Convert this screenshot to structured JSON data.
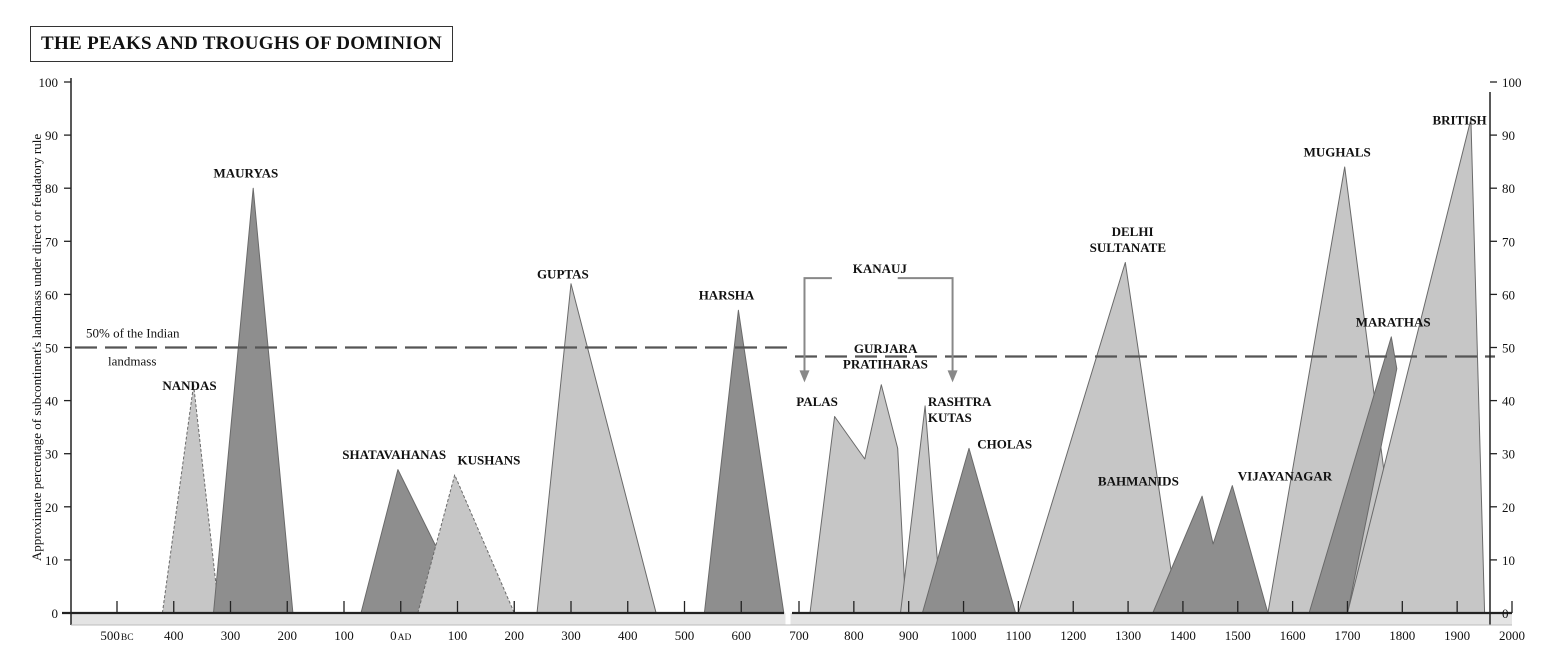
{
  "chart_data": {
    "type": "area",
    "title": "THE PEAKS AND TROUGHS OF DOMINION",
    "ylabel": "Approximate percentage of subcontinent's landmass under direct or feudatory rule",
    "ylim": [
      0,
      100
    ],
    "y_ticks": [
      "0",
      "10",
      "20",
      "30",
      "40",
      "50",
      "60",
      "70",
      "80",
      "90",
      "100"
    ],
    "reference_line": {
      "value": 50,
      "label_line1": "50% of the Indian",
      "label_line2": "landmass"
    },
    "panels": [
      {
        "name": "left",
        "x_ticks": [
          {
            "year": -500,
            "label": "500",
            "suffix": "BC"
          },
          {
            "year": -400,
            "label": "400"
          },
          {
            "year": -300,
            "label": "300"
          },
          {
            "year": -200,
            "label": "200"
          },
          {
            "year": -100,
            "label": "100"
          },
          {
            "year": 0,
            "label": "0",
            "suffix": "AD"
          },
          {
            "year": 100,
            "label": "100"
          },
          {
            "year": 200,
            "label": "200"
          },
          {
            "year": 300,
            "label": "300"
          },
          {
            "year": 400,
            "label": "400"
          },
          {
            "year": 500,
            "label": "500"
          },
          {
            "year": 600,
            "label": "600"
          }
        ]
      },
      {
        "name": "right",
        "x_ticks": [
          {
            "year": 700,
            "label": "700"
          },
          {
            "year": 800,
            "label": "800"
          },
          {
            "year": 900,
            "label": "900"
          },
          {
            "year": 1000,
            "label": "1000"
          },
          {
            "year": 1100,
            "label": "1100"
          },
          {
            "year": 1200,
            "label": "1200"
          },
          {
            "year": 1300,
            "label": "1300"
          },
          {
            "year": 1400,
            "label": "1400"
          },
          {
            "year": 1500,
            "label": "1500"
          },
          {
            "year": 1600,
            "label": "1600"
          },
          {
            "year": 1700,
            "label": "1700"
          },
          {
            "year": 1800,
            "label": "1800"
          },
          {
            "year": 1900,
            "label": "1900"
          },
          {
            "year": 2000,
            "label": "2000"
          }
        ]
      }
    ],
    "series": [
      {
        "name": "NANDAS",
        "panel": 0,
        "tone": "light",
        "dashed": true,
        "points": [
          [
            -420,
            0
          ],
          [
            -365,
            43
          ],
          [
            -320,
            0
          ]
        ]
      },
      {
        "name": "MAURYAS",
        "panel": 0,
        "tone": "dark",
        "points": [
          [
            -330,
            0
          ],
          [
            -260,
            80
          ],
          [
            -190,
            0
          ]
        ]
      },
      {
        "name": "SHATAVAHANAS",
        "panel": 0,
        "tone": "dark",
        "points": [
          [
            -70,
            0
          ],
          [
            -5,
            27
          ],
          [
            120,
            0
          ]
        ]
      },
      {
        "name": "KUSHANS",
        "panel": 0,
        "tone": "light",
        "dashed": true,
        "points": [
          [
            30,
            0
          ],
          [
            95,
            26
          ],
          [
            200,
            0
          ]
        ]
      },
      {
        "name": "GUPTAS",
        "panel": 0,
        "tone": "light",
        "points": [
          [
            240,
            0
          ],
          [
            300,
            62
          ],
          [
            450,
            0
          ]
        ]
      },
      {
        "name": "HARSHA",
        "panel": 0,
        "tone": "dark",
        "points": [
          [
            535,
            0
          ],
          [
            595,
            57
          ],
          [
            675,
            0
          ]
        ]
      },
      {
        "name": "PALAS",
        "panel": 1,
        "tone": "light",
        "points": [
          [
            720,
            0
          ],
          [
            765,
            37
          ],
          [
            820,
            29
          ],
          [
            850,
            43
          ],
          [
            880,
            31
          ],
          [
            895,
            0
          ]
        ]
      },
      {
        "name": "RASHTRA KUTAS",
        "panel": 1,
        "tone": "light",
        "points": [
          [
            885,
            0
          ],
          [
            930,
            39
          ],
          [
            960,
            0
          ]
        ]
      },
      {
        "name": "CHOLAS",
        "panel": 1,
        "tone": "dark",
        "points": [
          [
            925,
            0
          ],
          [
            1010,
            31
          ],
          [
            1095,
            0
          ]
        ]
      },
      {
        "name": "DELHI SULTANATE",
        "panel": 1,
        "tone": "light",
        "points": [
          [
            1100,
            0
          ],
          [
            1295,
            66
          ],
          [
            1390,
            0
          ]
        ]
      },
      {
        "name": "BAHMANIDS",
        "panel": 1,
        "tone": "dark",
        "points": [
          [
            1345,
            0
          ],
          [
            1435,
            22
          ],
          [
            1455,
            13
          ],
          [
            1490,
            24
          ],
          [
            1555,
            0
          ]
        ]
      },
      {
        "name": "MUGHALS",
        "panel": 1,
        "tone": "light",
        "points": [
          [
            1555,
            0
          ],
          [
            1695,
            84
          ],
          [
            1800,
            0
          ]
        ]
      },
      {
        "name": "MARATHAS",
        "panel": 1,
        "tone": "dark",
        "points": [
          [
            1630,
            0
          ],
          [
            1780,
            52
          ],
          [
            1790,
            46
          ],
          [
            1700,
            0
          ]
        ]
      },
      {
        "name": "BRITISH",
        "panel": 1,
        "tone": "light",
        "points": [
          [
            1700,
            0
          ],
          [
            1925,
            93
          ],
          [
            1950,
            0
          ]
        ]
      }
    ],
    "labels": [
      {
        "text": "NANDAS",
        "panel": 0,
        "year": -420,
        "pct": 42
      },
      {
        "text": "MAURYAS",
        "panel": 0,
        "year": -330,
        "pct": 82
      },
      {
        "text": "SHATAVAHANAS",
        "panel": 0,
        "year": -103,
        "pct": 29
      },
      {
        "text": "KUSHANS",
        "panel": 0,
        "year": 100,
        "pct": 28
      },
      {
        "text": "GUPTAS",
        "panel": 0,
        "year": 240,
        "pct": 63
      },
      {
        "text": "HARSHA",
        "panel": 0,
        "year": 525,
        "pct": 59
      },
      {
        "text": "KANAUJ",
        "panel": 1,
        "year": 798,
        "pct": 64
      },
      {
        "text": "GURJARA",
        "panel": 1,
        "year": 800,
        "pct": 49
      },
      {
        "text": "PRATIHARAS",
        "panel": 1,
        "year": 780,
        "pct": 46
      },
      {
        "text": "PALAS",
        "panel": 1,
        "year": 695,
        "pct": 39
      },
      {
        "text": "RASHTRA",
        "panel": 1,
        "year": 935,
        "pct": 39
      },
      {
        "text": "KUTAS",
        "panel": 1,
        "year": 935,
        "pct": 36
      },
      {
        "text": "CHOLAS",
        "panel": 1,
        "year": 1025,
        "pct": 31
      },
      {
        "text": "DELHI",
        "panel": 1,
        "year": 1270,
        "pct": 71
      },
      {
        "text": "SULTANATE",
        "panel": 1,
        "year": 1230,
        "pct": 68
      },
      {
        "text": "BAHMANIDS",
        "panel": 1,
        "year": 1245,
        "pct": 24
      },
      {
        "text": "VIJAYANAGAR",
        "panel": 1,
        "year": 1500,
        "pct": 25
      },
      {
        "text": "MUGHALS",
        "panel": 1,
        "year": 1620,
        "pct": 86
      },
      {
        "text": "MARATHAS",
        "panel": 1,
        "year": 1715,
        "pct": 54
      },
      {
        "text": "BRITISH",
        "panel": 1,
        "year": 1855,
        "pct": 92
      }
    ],
    "kanauj_bracket": {
      "left_year": 710,
      "right_year": 980,
      "top_pct": 64,
      "arrow_pct": 44,
      "text_gap_start": 760,
      "text_gap_end": 880
    },
    "colors": {
      "light": "#c6c6c6",
      "dark": "#8e8e8e",
      "outline": "#6a6a6a",
      "axis": "#222222",
      "reference": "#555555",
      "arrow": "#888888"
    }
  }
}
